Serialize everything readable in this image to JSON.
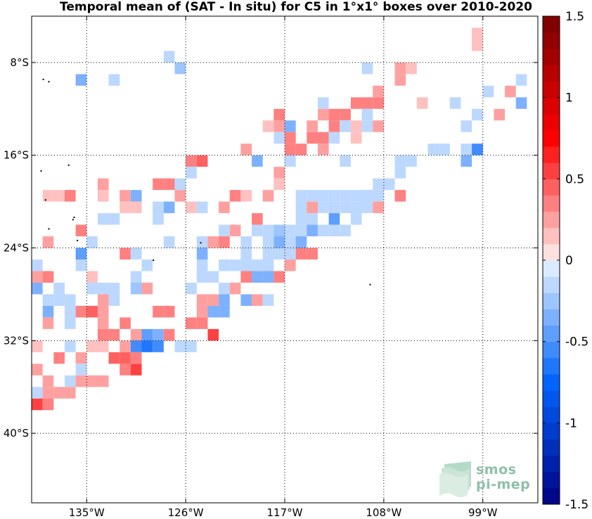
{
  "chart_data": {
    "type": "heatmap",
    "title": "Temporal mean of (SAT - In situ) for C5 in 1°x1° boxes over 2010-2020",
    "xlabel": "",
    "ylabel": "",
    "xlim": [
      -140,
      -94
    ],
    "ylim": [
      -46,
      -4
    ],
    "x_ticks": [
      {
        "value": -135,
        "label": "135°W"
      },
      {
        "value": -126,
        "label": "126°W"
      },
      {
        "value": -117,
        "label": "117°W"
      },
      {
        "value": -108,
        "label": "108°W"
      },
      {
        "value": -99,
        "label": "99°W"
      }
    ],
    "y_ticks": [
      {
        "value": -8,
        "label": "8°S"
      },
      {
        "value": -16,
        "label": "16°S"
      },
      {
        "value": -24,
        "label": "24°S"
      },
      {
        "value": -32,
        "label": "32°S"
      },
      {
        "value": -40,
        "label": "40°S"
      }
    ],
    "grid": true,
    "colorbar": {
      "min": -1.5,
      "max": 1.5,
      "levels": 30,
      "ticks": [
        {
          "value": 1.5,
          "label": "1.5"
        },
        {
          "value": 1,
          "label": "1"
        },
        {
          "value": 0.5,
          "label": "0.5"
        },
        {
          "value": 0,
          "label": "0"
        },
        {
          "value": -0.5,
          "label": "-0.5"
        },
        {
          "value": -1,
          "label": "-1"
        },
        {
          "value": -1.5,
          "label": "-1.5"
        }
      ]
    },
    "cells": [
      [
        -99.5,
        -5.5,
        0.15
      ],
      [
        -99.5,
        -6.5,
        0.15
      ],
      [
        -127.5,
        -7.5,
        -0.1
      ],
      [
        -126.5,
        -8.5,
        -0.25
      ],
      [
        -106.5,
        -8.5,
        0.25
      ],
      [
        -105.5,
        -8.5,
        0.15
      ],
      [
        -109.5,
        -8.5,
        -0.1
      ],
      [
        -135.5,
        -9.5,
        -0.4
      ],
      [
        -132.5,
        -9.5,
        -0.1
      ],
      [
        -106.5,
        -9.5,
        0.25
      ],
      [
        -95.5,
        -9.5,
        -0.1
      ],
      [
        -108.5,
        -10.5,
        0.25
      ],
      [
        -98.5,
        -10.5,
        -0.1
      ],
      [
        -96.5,
        -10.5,
        0.2
      ],
      [
        -113.5,
        -11.5,
        -0.15
      ],
      [
        -110.5,
        -11.5,
        0.3
      ],
      [
        -109.5,
        -11.5,
        0.35
      ],
      [
        -108.5,
        -11.5,
        0.3
      ],
      [
        -104.5,
        -11.5,
        0.15
      ],
      [
        -101.5,
        -11.5,
        -0.1
      ],
      [
        -95.5,
        -11.5,
        -0.3
      ],
      [
        -117.5,
        -12.5,
        0.4
      ],
      [
        -113.5,
        -12.5,
        0.2
      ],
      [
        -112.5,
        -12.5,
        0.3
      ],
      [
        -111.5,
        -12.5,
        0.3
      ],
      [
        -109.5,
        -12.5,
        -0.1
      ],
      [
        -99.5,
        -12.5,
        -0.1
      ],
      [
        -97.5,
        -12.5,
        0.2
      ],
      [
        -118.5,
        -13.5,
        0.15
      ],
      [
        -117.5,
        -13.5,
        0.2
      ],
      [
        -116.5,
        -13.5,
        -0.35
      ],
      [
        -114.5,
        -13.5,
        0.2
      ],
      [
        -112.5,
        -13.5,
        0.3
      ],
      [
        -111.5,
        -13.5,
        -0.1
      ],
      [
        -110.5,
        -13.5,
        0.15
      ],
      [
        -109.5,
        -13.5,
        -0.1
      ],
      [
        -108.5,
        -13.5,
        0.2
      ],
      [
        -100.5,
        -13.5,
        -0.1
      ],
      [
        -117.5,
        -14.5,
        -0.1
      ],
      [
        -116.5,
        -14.5,
        0.3
      ],
      [
        -114.5,
        -14.5,
        0.3
      ],
      [
        -113.5,
        -14.5,
        0.4
      ],
      [
        -112.5,
        -14.5,
        -0.1
      ],
      [
        -110.5,
        -14.5,
        0.15
      ],
      [
        -120.5,
        -15.5,
        0.25
      ],
      [
        -116.5,
        -15.5,
        0.3
      ],
      [
        -115.5,
        -15.5,
        0.3
      ],
      [
        -113.5,
        -15.5,
        0.25
      ],
      [
        -103.5,
        -15.5,
        -0.1
      ],
      [
        -102.5,
        -15.5,
        -0.1
      ],
      [
        -100.5,
        -15.5,
        -0.2
      ],
      [
        -99.5,
        -15.5,
        -0.55
      ],
      [
        -125.5,
        -16.5,
        0.3
      ],
      [
        -124.5,
        -16.5,
        0.45
      ],
      [
        -119.5,
        -16.5,
        -0.3
      ],
      [
        -116.5,
        -16.5,
        -0.1
      ],
      [
        -111.5,
        -16.5,
        -0.1
      ],
      [
        -106.5,
        -16.5,
        -0.2
      ],
      [
        -105.5,
        -16.5,
        -0.15
      ],
      [
        -100.5,
        -16.5,
        -0.35
      ],
      [
        -125.5,
        -17.5,
        -0.1
      ],
      [
        -117.5,
        -17.5,
        0.2
      ],
      [
        -106.5,
        -17.5,
        -0.15
      ],
      [
        -126.5,
        -18.5,
        -0.1
      ],
      [
        -133.5,
        -18.5,
        0.25
      ],
      [
        -128.5,
        -18.5,
        0.3
      ],
      [
        -127.5,
        -18.5,
        0.3
      ],
      [
        -117.5,
        -18.5,
        0.15
      ],
      [
        -108.5,
        -18.5,
        -0.15
      ],
      [
        -107.5,
        -18.5,
        -0.15
      ],
      [
        -130.5,
        -19.5,
        -0.3
      ],
      [
        -118.5,
        -19.5,
        0.2
      ],
      [
        -109.5,
        -19.5,
        0.25
      ],
      [
        -106.5,
        -19.5,
        0.35
      ],
      [
        -138.5,
        -19.5,
        0.15
      ],
      [
        -137.5,
        -19.5,
        0.15
      ],
      [
        -136.5,
        -19.5,
        0.3
      ],
      [
        -133.5,
        -19.5,
        0.15
      ],
      [
        -131.5,
        -19.5,
        0.2
      ],
      [
        -126.5,
        -19.5,
        0.2
      ],
      [
        -121.5,
        -19.5,
        0.3
      ],
      [
        -120.5,
        -19.5,
        0.15
      ],
      [
        -115.5,
        -19.5,
        -0.15
      ],
      [
        -114.5,
        -19.5,
        -0.15
      ],
      [
        -113.5,
        -19.5,
        -0.15
      ],
      [
        -112.5,
        -19.5,
        -0.15
      ],
      [
        -111.5,
        -19.5,
        -0.15
      ],
      [
        -110.5,
        -19.5,
        -0.15
      ],
      [
        -109.5,
        -19.5,
        -0.15
      ],
      [
        -108.5,
        -19.5,
        -0.15
      ],
      [
        -131.5,
        -20.5,
        0.15
      ],
      [
        -130.5,
        -20.5,
        0.15
      ],
      [
        -128.5,
        -20.5,
        -0.15
      ],
      [
        -127.5,
        -20.5,
        -0.35
      ],
      [
        -125.5,
        -20.5,
        0.15
      ],
      [
        -124.5,
        -20.5,
        -0.1
      ],
      [
        -122.5,
        -20.5,
        0.2
      ],
      [
        -115.5,
        -20.5,
        -0.15
      ],
      [
        -114.5,
        -20.5,
        0.25
      ],
      [
        -113.5,
        -20.5,
        -0.15
      ],
      [
        -112.5,
        -20.5,
        -0.15
      ],
      [
        -111.5,
        -20.5,
        -0.15
      ],
      [
        -110.5,
        -20.5,
        -0.15
      ],
      [
        -109.5,
        -20.5,
        -0.15
      ],
      [
        -108.5,
        -20.5,
        0.2
      ],
      [
        -133.5,
        -21.5,
        -0.1
      ],
      [
        -132.5,
        -21.5,
        -0.1
      ],
      [
        -128.5,
        -21.5,
        -0.15
      ],
      [
        -119.5,
        -21.5,
        0.4
      ],
      [
        -115.5,
        -21.5,
        -0.15
      ],
      [
        -114.5,
        -21.5,
        -0.2
      ],
      [
        -112.5,
        -21.5,
        -0.45
      ],
      [
        -110.5,
        -21.5,
        -0.15
      ],
      [
        -135.5,
        -22.5,
        0.4
      ],
      [
        -122.5,
        -22.5,
        -0.1
      ],
      [
        -121.5,
        -22.5,
        0.25
      ],
      [
        -119.5,
        -22.5,
        -0.15
      ],
      [
        -118.5,
        -22.5,
        -0.15
      ],
      [
        -117.5,
        -22.5,
        -0.25
      ],
      [
        -116.5,
        -22.5,
        -0.2
      ],
      [
        -115.5,
        -22.5,
        -0.15
      ],
      [
        -114.5,
        -22.5,
        -0.4
      ],
      [
        -113.5,
        -22.5,
        -0.15
      ],
      [
        -112.5,
        -22.5,
        -0.15
      ],
      [
        -111.5,
        -22.5,
        -0.1
      ],
      [
        -138.5,
        -23.5,
        0.2
      ],
      [
        -134.5,
        -23.5,
        -0.1
      ],
      [
        -127.5,
        -23.5,
        -0.1
      ],
      [
        -124.5,
        -23.5,
        -0.15
      ],
      [
        -123.5,
        -23.5,
        0.2
      ],
      [
        -122.5,
        -23.5,
        0.35
      ],
      [
        -120.5,
        -23.5,
        -0.1
      ],
      [
        -118.5,
        -23.5,
        -0.15
      ],
      [
        -117.5,
        -23.5,
        -0.35
      ],
      [
        -116.5,
        -23.5,
        -0.1
      ],
      [
        -115.5,
        -23.5,
        -0.3
      ],
      [
        -135.5,
        -24.5,
        -0.5
      ],
      [
        -131.5,
        -24.5,
        0.3
      ],
      [
        -130.5,
        -24.5,
        -0.1
      ],
      [
        -124.5,
        -24.5,
        -0.4
      ],
      [
        -120.5,
        -24.5,
        -0.1
      ],
      [
        -118.5,
        -24.5,
        -0.15
      ],
      [
        -117.5,
        -24.5,
        -0.2
      ],
      [
        -116.5,
        -24.5,
        -0.15
      ],
      [
        -115.5,
        -24.5,
        0.35
      ],
      [
        -114.5,
        -24.5,
        0.35
      ],
      [
        -139.5,
        -25.5,
        -0.1
      ],
      [
        -135.5,
        -25.5,
        -0.15
      ],
      [
        -129.5,
        -25.5,
        -0.1
      ],
      [
        -124.5,
        -25.5,
        -0.1
      ],
      [
        -122.5,
        -25.5,
        -0.15
      ],
      [
        -121.5,
        -25.5,
        -0.2
      ],
      [
        -120.5,
        -25.5,
        -0.2
      ],
      [
        -119.5,
        -25.5,
        -0.2
      ],
      [
        -118.5,
        -25.5,
        -0.2
      ],
      [
        -116.5,
        -25.5,
        0.2
      ],
      [
        -139.5,
        -26.5,
        0.25
      ],
      [
        -138.5,
        -26.5,
        0.35
      ],
      [
        -134.5,
        -26.5,
        0.15
      ],
      [
        -130.5,
        -26.5,
        -0.1
      ],
      [
        -124.5,
        -26.5,
        -0.1
      ],
      [
        -123.5,
        -26.5,
        -0.1
      ],
      [
        -120.5,
        -26.5,
        0.35
      ],
      [
        -119.5,
        -26.5,
        -0.35
      ],
      [
        -118.5,
        -26.5,
        -0.35
      ],
      [
        -117.5,
        -26.5,
        0.3
      ],
      [
        -139.5,
        -27.5,
        -0.3
      ],
      [
        -137.5,
        -27.5,
        -0.1
      ],
      [
        -134.5,
        -27.5,
        -0.1
      ],
      [
        -133.5,
        -27.5,
        -0.1
      ],
      [
        -132.5,
        -27.5,
        -0.1
      ],
      [
        -130.5,
        -27.5,
        -0.25
      ],
      [
        -129.5,
        -27.5,
        0.25
      ],
      [
        -125.5,
        -27.5,
        -0.1
      ],
      [
        -122.5,
        -27.5,
        -0.2
      ],
      [
        -121.5,
        -27.5,
        0.25
      ],
      [
        -138.5,
        -28.5,
        -0.1
      ],
      [
        -137.5,
        -28.5,
        -0.1
      ],
      [
        -136.5,
        -28.5,
        -0.1
      ],
      [
        -133.5,
        -28.5,
        0.2
      ],
      [
        -132.5,
        -28.5,
        -0.1
      ],
      [
        -124.5,
        -28.5,
        0.2
      ],
      [
        -123.5,
        -28.5,
        0.2
      ],
      [
        -122.5,
        -28.5,
        -0.3
      ],
      [
        -120.5,
        -28.5,
        -0.3
      ],
      [
        -119.5,
        -28.5,
        0.25
      ],
      [
        -118.5,
        -28.5,
        -0.1
      ],
      [
        -138.5,
        -29.5,
        -0.3
      ],
      [
        -136.5,
        -29.5,
        -0.1
      ],
      [
        -135.5,
        -29.5,
        0.4
      ],
      [
        -134.5,
        -29.5,
        0.45
      ],
      [
        -133.5,
        -29.5,
        0.2
      ],
      [
        -128.5,
        -29.5,
        0.35
      ],
      [
        -127.5,
        -29.5,
        0.4
      ],
      [
        -124.5,
        -29.5,
        0.2
      ],
      [
        -123.5,
        -29.5,
        -0.3
      ],
      [
        -122.5,
        -29.5,
        -0.3
      ],
      [
        -138.5,
        -30.5,
        0.25
      ],
      [
        -136.5,
        -30.5,
        -0.1
      ],
      [
        -133.5,
        -30.5,
        0.2
      ],
      [
        -131.5,
        -30.5,
        0.4
      ],
      [
        -125.5,
        -30.5,
        0.3
      ],
      [
        -124.5,
        -30.5,
        0.3
      ],
      [
        -133.5,
        -31.5,
        0.3
      ],
      [
        -132.5,
        -31.5,
        0.3
      ],
      [
        -130.5,
        -31.5,
        0.2
      ],
      [
        -129.5,
        -31.5,
        -0.45
      ],
      [
        -128.5,
        -31.5,
        -0.35
      ],
      [
        -127.5,
        -31.5,
        0.35
      ],
      [
        -123.5,
        -31.5,
        0.55
      ],
      [
        -139.5,
        -32.5,
        0.15
      ],
      [
        -136.5,
        -32.5,
        -0.1
      ],
      [
        -134.5,
        -32.5,
        0.15
      ],
      [
        -133.5,
        -32.5,
        0.15
      ],
      [
        -131.5,
        -32.5,
        0.2
      ],
      [
        -130.5,
        -32.5,
        -0.6
      ],
      [
        -129.5,
        -32.5,
        -0.65
      ],
      [
        -128.5,
        -32.5,
        -0.6
      ],
      [
        -126.5,
        -32.5,
        -0.1
      ],
      [
        -125.5,
        -32.5,
        -0.1
      ],
      [
        -137.5,
        -33.5,
        0.4
      ],
      [
        -135.5,
        -33.5,
        0.2
      ],
      [
        -132.5,
        -33.5,
        0.45
      ],
      [
        -131.5,
        -33.5,
        0.45
      ],
      [
        -130.5,
        -33.5,
        0.3
      ],
      [
        -139.5,
        -34.5,
        0.2
      ],
      [
        -135.5,
        -34.5,
        -0.1
      ],
      [
        -131.5,
        -34.5,
        0.35
      ],
      [
        -130.5,
        -34.5,
        0.5
      ],
      [
        -138.5,
        -35.5,
        0.2
      ],
      [
        -136.5,
        -35.5,
        -0.1
      ],
      [
        -135.5,
        -35.5,
        0.2
      ],
      [
        -134.5,
        -35.5,
        0.25
      ],
      [
        -133.5,
        -35.5,
        0.25
      ],
      [
        -139.5,
        -36.5,
        -0.1
      ],
      [
        -138.5,
        -36.5,
        0.25
      ],
      [
        -137.5,
        -36.5,
        0.25
      ],
      [
        -136.5,
        -36.5,
        0.25
      ],
      [
        -139.5,
        -37.5,
        0.55
      ],
      [
        -138.5,
        -37.5,
        0.3
      ]
    ]
  },
  "logo": {
    "line1": "smos",
    "line2": "pi-mep"
  }
}
